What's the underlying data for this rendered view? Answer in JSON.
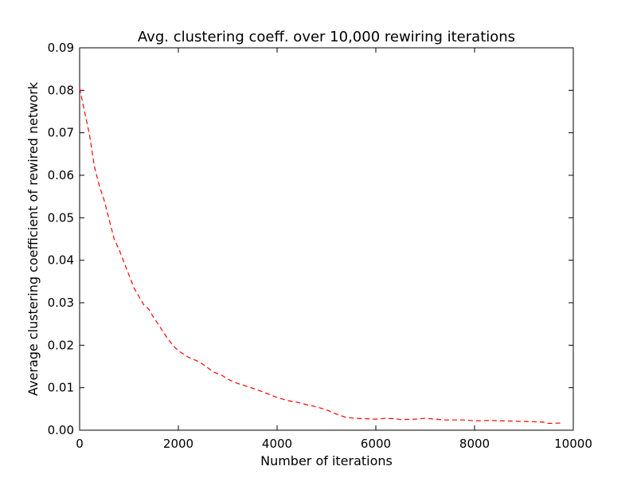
{
  "chart_data": {
    "type": "line",
    "title": "Avg. clustering coeff. over 10,000 rewiring iterations",
    "xlabel": "Number of iterations",
    "ylabel": "Average clustering coefficient of rewired network",
    "xlim": [
      0,
      10000
    ],
    "ylim": [
      0,
      0.09
    ],
    "xticks": [
      0,
      2000,
      4000,
      6000,
      8000,
      10000
    ],
    "xtick_labels": [
      "0",
      "2000",
      "4000",
      "6000",
      "8000",
      "10000"
    ],
    "yticks": [
      0,
      0.01,
      0.02,
      0.03,
      0.04,
      0.05,
      0.06,
      0.07,
      0.08,
      0.09
    ],
    "ytick_labels": [
      "0.00",
      "0.01",
      "0.02",
      "0.03",
      "0.04",
      "0.05",
      "0.06",
      "0.07",
      "0.08",
      "0.09"
    ],
    "grid": false,
    "series": [
      {
        "color": "#ff0000",
        "linestyle": "dashed",
        "x": [
          0,
          100,
          200,
          300,
          400,
          500,
          600,
          700,
          800,
          900,
          1000,
          1100,
          1200,
          1300,
          1400,
          1500,
          1600,
          1700,
          1800,
          1900,
          2000,
          2200,
          2400,
          2500,
          2700,
          2900,
          3000,
          3200,
          3400,
          3600,
          3800,
          4000,
          4200,
          4400,
          4600,
          4800,
          5000,
          5200,
          5400,
          5600,
          5800,
          6000,
          6200,
          6400,
          6500,
          6800,
          7000,
          7200,
          7400,
          7800,
          8000,
          8300,
          8600,
          8900,
          9200,
          9400,
          9500,
          9800
        ],
        "y": [
          0.0805,
          0.075,
          0.0695,
          0.062,
          0.0575,
          0.054,
          0.0495,
          0.045,
          0.0425,
          0.0395,
          0.0365,
          0.0335,
          0.0315,
          0.0295,
          0.0285,
          0.0265,
          0.0248,
          0.023,
          0.0213,
          0.0198,
          0.0187,
          0.0172,
          0.0162,
          0.0155,
          0.0138,
          0.0128,
          0.012,
          0.011,
          0.0103,
          0.0095,
          0.0086,
          0.0077,
          0.007,
          0.0066,
          0.006,
          0.0055,
          0.0048,
          0.0038,
          0.003,
          0.0028,
          0.0027,
          0.0026,
          0.0028,
          0.0027,
          0.0025,
          0.0026,
          0.0028,
          0.0026,
          0.0024,
          0.0024,
          0.0022,
          0.0023,
          0.0022,
          0.0021,
          0.002,
          0.0019,
          0.0016,
          0.0017
        ]
      }
    ]
  }
}
